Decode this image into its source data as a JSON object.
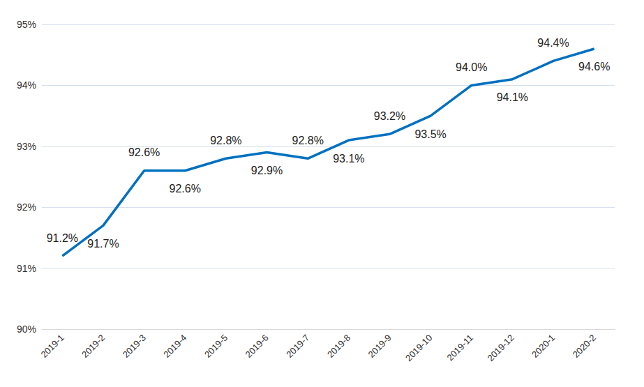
{
  "chart_data": {
    "type": "line",
    "categories": [
      "2019-1",
      "2019-2",
      "2019-3",
      "2019-4",
      "2019-5",
      "2019-6",
      "2019-7",
      "2019-8",
      "2019-9",
      "2019-10",
      "2019-11",
      "2019-12",
      "2020-1",
      "2020-2"
    ],
    "values": [
      91.2,
      91.7,
      92.6,
      92.6,
      92.8,
      92.9,
      92.8,
      93.1,
      93.2,
      93.5,
      94.0,
      94.1,
      94.4,
      94.6
    ],
    "value_labels": [
      "91.2%",
      "91.7%",
      "92.6%",
      "92.6%",
      "92.8%",
      "92.9%",
      "92.8%",
      "93.1%",
      "93.2%",
      "93.5%",
      "94.0%",
      "94.1%",
      "94.4%",
      "94.6%"
    ],
    "color": "#0070c0",
    "ylim": [
      90,
      95
    ],
    "yticks": [
      {
        "value": 90,
        "label": "90%"
      },
      {
        "value": 91,
        "label": "91%"
      },
      {
        "value": 92,
        "label": "92%"
      },
      {
        "value": 93,
        "label": "93%"
      },
      {
        "value": 94,
        "label": "94%"
      },
      {
        "value": 95,
        "label": "95%"
      }
    ],
    "grid": true,
    "data_labels": true
  }
}
